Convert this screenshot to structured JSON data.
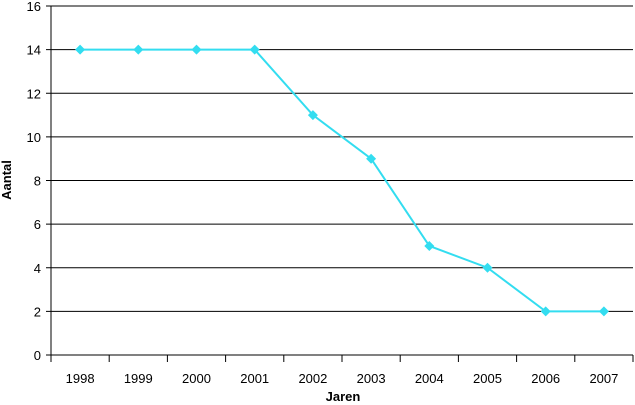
{
  "chart_data": {
    "type": "line",
    "title": "",
    "xlabel": "Jaren",
    "ylabel": "Aantal",
    "categories": [
      "1998",
      "1999",
      "2000",
      "2001",
      "2002",
      "2003",
      "2004",
      "2005",
      "2006",
      "2007"
    ],
    "series": [
      {
        "values": [
          14,
          14,
          14,
          14,
          11,
          9,
          5,
          4,
          2,
          2
        ]
      }
    ],
    "ylim": [
      0,
      16
    ],
    "yticks": [
      "0",
      "2",
      "4",
      "6",
      "8",
      "10",
      "12",
      "14",
      "16"
    ],
    "grid": true,
    "legend": "none",
    "colors": {
      "line": "#33DDF0",
      "marker": "#33DDF0",
      "grid": "#000000",
      "axis": "#000000"
    }
  }
}
